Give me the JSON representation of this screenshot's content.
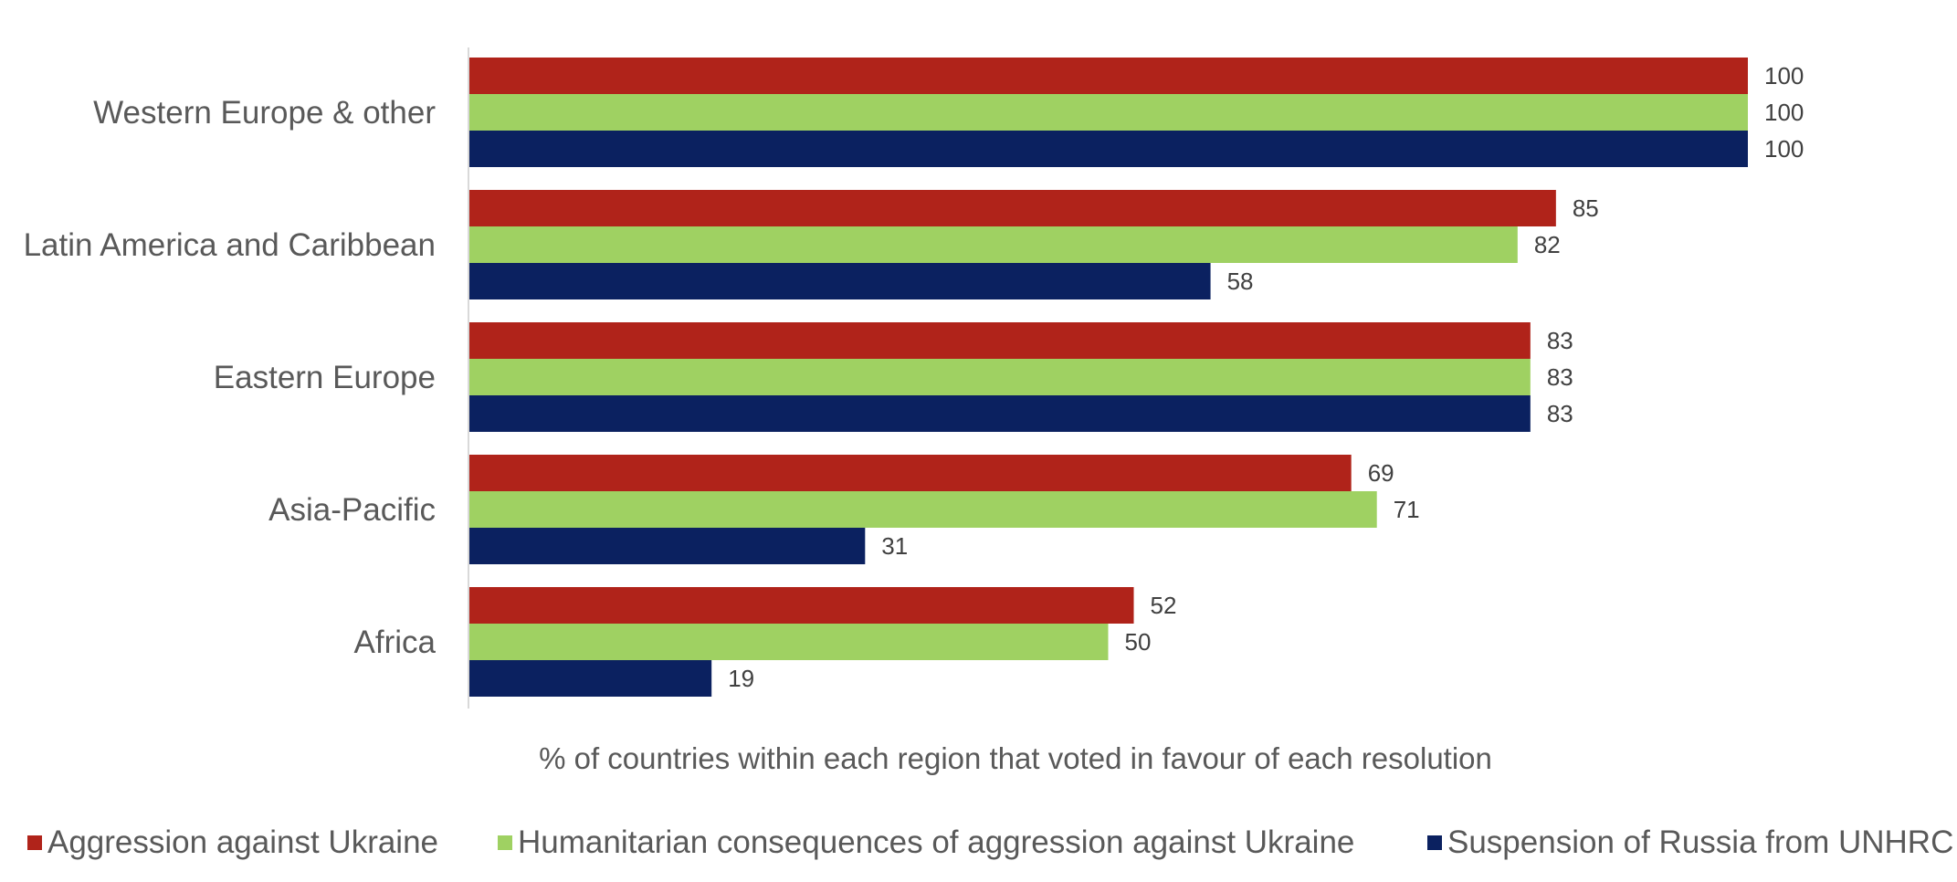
{
  "chart_data": {
    "type": "bar",
    "orientation": "horizontal",
    "categories": [
      "Western Europe & other",
      "Latin America and Caribbean",
      "Eastern Europe",
      "Asia-Pacific",
      "Africa"
    ],
    "series": [
      {
        "name": "Aggression against Ukraine",
        "color": "#b0231a",
        "values": [
          100,
          85,
          83,
          69,
          52
        ]
      },
      {
        "name": "Humanitarian consequences of aggression against Ukraine",
        "color": "#9fd162",
        "values": [
          100,
          82,
          83,
          71,
          50
        ]
      },
      {
        "name": "Suspension of Russia from UNHRC",
        "color": "#0b2160",
        "values": [
          100,
          58,
          83,
          31,
          19
        ]
      }
    ],
    "xlabel": "% of countries within each region that voted in favour of each resolution",
    "xlim": [
      0,
      100
    ],
    "grid": false,
    "legend_position": "bottom"
  }
}
